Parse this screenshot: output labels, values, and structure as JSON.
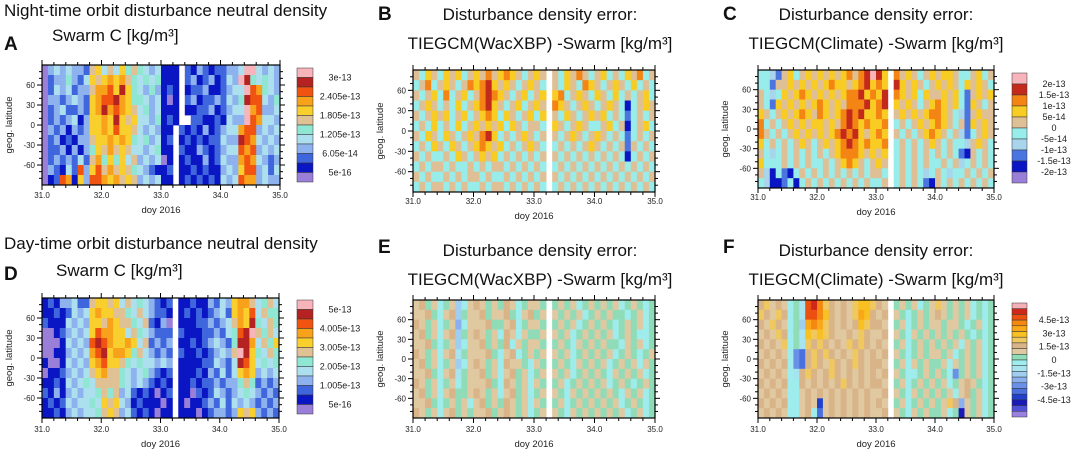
{
  "headers": {
    "night": "Night-time orbit disturbance neutral density",
    "day": "Day-time orbit disturbance neutral density"
  },
  "palettes": {
    "density": [
      "#9a7fd8",
      "#0a16c4",
      "#3f66dc",
      "#8eb2ee",
      "#ace0ee",
      "#8fe6d2",
      "#e0c194",
      "#f8cf2c",
      "#f8a21c",
      "#f05410",
      "#b42222",
      "#f7b4ba"
    ],
    "error10": [
      "#9a7fd8",
      "#0a16c4",
      "#4a74e0",
      "#a8d4ec",
      "#98ecea",
      "#dfc096",
      "#f8cc22",
      "#f48414",
      "#c42a1c",
      "#f7b4ba"
    ],
    "error20": [
      "#9a80e0",
      "#5050d8",
      "#1a1ab8",
      "#2040d0",
      "#4a70e0",
      "#6a90e8",
      "#8ab0ee",
      "#a0cef0",
      "#a8e4f0",
      "#9eecec",
      "#90dcb8",
      "#e0c8a0",
      "#d8b488",
      "#f0c860",
      "#f8c020",
      "#f8a818",
      "#f48810",
      "#ec5010",
      "#d02818",
      "#f4b0b8"
    ]
  },
  "chart_data": [
    {
      "id": "A",
      "type": "heatmap",
      "panel_label": "A",
      "title_lines": [
        "Swarm C [kg/m³]"
      ],
      "xlabel": "doy 2016",
      "ylabel": "geog. latitude",
      "xlim": [
        31.0,
        35.0
      ],
      "ylim": [
        -90,
        90
      ],
      "xticks": [
        "31.0",
        "32.0",
        "33.0",
        "34.0",
        "35.0"
      ],
      "yticks": [
        "60",
        "30",
        "0",
        "-30",
        "-60"
      ],
      "palette": "density",
      "colorbar_labels": [
        "3e-13",
        "2.405e-13",
        "1.805e-13",
        "1.205e-13",
        "6.05e-14",
        "5e-16"
      ],
      "grid_note": "rows: latitude bins 90 to -90 (15 deg); cols: 0.1 day bins; value = color level index (0-9,a-b); '-' = no data",
      "grid": [
        "03434332674647565434111-2132122334bb43433",
        "02335324767878654545111-231231243ba54543",
        "02434233688 97a754353121-1223112344b985434",
        "03323432789 9a8755434101-2312232435a994353",
        "023422327 8a898764534111-1122312344b893349",
        "02323413778 7a7674435121--221121433b984434",
        "0323132377879776434311-2121312344899343 4",
        "0231213367787875453412-1212122433a984343",
        "0223131357686764434511-2113212344989343 4",
        "0232324268575746343401-1211312433898432 3",
        "0321429379686765432112-1121211343799342 4",
        "0129817399878676343411-1212121434988343 3"
      ]
    },
    {
      "id": "B",
      "type": "heatmap",
      "panel_label": "B",
      "title_lines": [
        "Disturbance density error:",
        "TIEGCM(WacXBP) -Swarm [kg/m³]"
      ],
      "xlabel": "doy 2016",
      "ylabel": "geog. latitude",
      "xlim": [
        31.0,
        35.0
      ],
      "ylim": [
        -90,
        90
      ],
      "xticks": [
        "31.0",
        "32.0",
        "33.0",
        "34.0",
        "35.0"
      ],
      "yticks": [
        "60",
        "30",
        "0",
        "-30",
        "-60"
      ],
      "palette": "error10",
      "colorbar_labels": [],
      "grid": [
        "5465465645657567654565-54657545645465745",
        "4574565457678656545654-54654765456546454",
        "5456474564578765456456-67456546546454564",
        "4565454645678654564565-76545654565414565",
        "5456564564567646545646-54654565645424545",
        "4546454645656564654554-65456544564514564",
        "5465465456578645456545-54565456545424545",
        "4546546545676564545654-45454565454525454",
        "5454454654565645454545-54545454545414545",
        "4545545445454554545454-45454545454545454",
        "5454454545545445454545-54545454545454545",
        "4545545454454554545454-45454545454545454"
      ]
    },
    {
      "id": "C",
      "type": "heatmap",
      "panel_label": "C",
      "title_lines": [
        "Disturbance density error:",
        "TIEGCM(Climate) -Swarm [kg/m³]"
      ],
      "xlabel": "doy 2016",
      "ylabel": "geog. latitude",
      "xlim": [
        31.0,
        35.0
      ],
      "ylim": [
        -90,
        90
      ],
      "xticks": [
        "31.0",
        "32.0",
        "33.0",
        "34.0",
        "35.0"
      ],
      "yticks": [
        "60",
        "30",
        "0",
        "-30",
        "-60"
      ],
      "palette": "error10",
      "colorbar_labels": [
        "2e-13",
        "1.5e-13",
        "1e-13",
        "5e-14",
        "0",
        "-5e-14",
        "-1e-13",
        "-1.5e-13",
        "-2e-13"
      ],
      "grid": [
        "4432564565656567578986-75654565665445645",
        "4425565656567665678676-86565456565465654",
        "5434656765656567786768-76564655656425656",
        "5426565656765657778678-65654567656426545",
        "6545656765765678786676-56565677654325655",
        "7454565656656578767667-45456567654526565",
        "7545456565656787865676-54545676545324565",
        "6454545654565678767667-45454565454435654",
        "5434545454545677765656-45454545454215454",
        "6444545454454567654565-45454544545345454",
        "5314214545454545454554-45454345434454545",
        "4311241454545454545445-45454215454545454"
      ]
    },
    {
      "id": "D",
      "type": "heatmap",
      "panel_label": "D",
      "title_lines": [
        "Swarm C  [kg/m³]"
      ],
      "xlabel": "doy 2016",
      "ylabel": "geog. latitude",
      "xlim": [
        31.0,
        35.0
      ],
      "ylim": [
        -90,
        90
      ],
      "xticks": [
        "31.0",
        "32.0",
        "33.0",
        "34.0",
        "35.0"
      ],
      "yticks": [
        "60",
        "30",
        "0",
        "-30",
        "-60"
      ],
      "palette": "density",
      "colorbar_labels": [
        "5e-13",
        "4.005e-13",
        "3.005e-13",
        "2.005e-13",
        "1.005e-13",
        "5e-16"
      ],
      "grid": [
        "121334226776746454321 2-112113243788 64564",
        "112124347877665464322 1-121212342787946 55",
        "211143437768766546213 0-111223234687a5465",
        "001234347988774654322 2-211122324 59ab6564",
        "000143439a98778746232 3-112123432 5aa84657",
        "001134348 9a78875643232-211212343 6ba75465",
        "100143437897765454434 3-111122432 4a974545",
        "011234346786654345321 2-111213242 47873434",
        "112143454666654343212 1-112122323 35652323",
        "213134344565634212101 2-110212432 34543232",
        "121243445476743121110 1-101123242 43432323",
        "112134344567634212101 1-111012332 37673232"
      ]
    },
    {
      "id": "E",
      "type": "heatmap",
      "panel_label": "E",
      "title_lines": [
        "Disturbance density error:",
        "TIEGCM(WacXBP) -Swarm [kg/m³]"
      ],
      "xlabel": "doy 2016",
      "ylabel": "geog. latitude",
      "xlim": [
        31.0,
        35.0
      ],
      "ylim": [
        -90,
        90
      ],
      "xticks": [
        "31.0",
        "32.0",
        "33.0",
        "34.0",
        "35.0"
      ],
      "yticks": [
        "60",
        "30",
        "0",
        "-30",
        "-60"
      ],
      "palette": "error20",
      "colorbar_labels": [],
      "grid": [
        "bcab9ab79bcbabacb9abba-abab9ababab9aba9a",
        "bbca9bc7abbcabbca9bcab-babab9ababaa9ab9a",
        "cbab9ab69bbbcaabc9abba-abab9ababa9abab9a",
        "bcab9bc7abcbab9cb9baab-bab9ababab9aba99a",
        "bbca9ab79bbcabac9babba-aba9babab aa9bab9a",
        "cbab9bc8abbbca9bc9abab-bab9ababab9aba9ab",
        "bcab9ab79bcbab9cbba9ba-aba9babab9abab9ba",
        "bbca9bc8abbcab9bcab9ab-bab9ababa9babab9a",
        "cbab9ab9abbbca9cbab9ba-ab9ababab9aba9aba",
        "bcab9bcaabcbab9bcab9ab-ba9bababab a9bab9a",
        "bbca9abab9bcabacbab9ba-ab9abababab9aba9a",
        "cbab9bcababbcabcbab9ab-ba9bababab ab9ab9a"
      ]
    },
    {
      "id": "F",
      "type": "heatmap",
      "panel_label": "F",
      "title_lines": [
        "Disturbance density error:",
        "TIEGCM(Climate) -Swarm [kg/m³]"
      ],
      "xlabel": "doy 2016",
      "ylabel": "geog. latitude",
      "xlim": [
        31.0,
        35.0
      ],
      "ylim": [
        -90,
        90
      ],
      "xticks": [
        "31.0",
        "32.0",
        "33.0",
        "34.0",
        "35.0"
      ],
      "yticks": [
        "60",
        "30",
        "0",
        "-30",
        "-60"
      ],
      "palette": "error20",
      "colorbar_labels": [
        "4.5e-13",
        "3e-13",
        "1.5e-13",
        "0",
        "-1.5e-13",
        "-3e-13",
        "-4.5e-13"
      ],
      "grid": [
        "cdbcb9a8higdcbcbdeedcb-abab9abdbabab9a9a",
        "dcbdc9a8hhgecbcbdfecbc-ba9ababcbabab9a9a",
        "cbdcb9a7fgfdcbcbcedccb-ab9ababbabba9ab9a",
        "bcbdc9a8ededcbbcbdcbbc-ba9bababababa9a9a",
        "cbcbd9a8dcdcbcbdcdcbcb-ab9ababab ab9bab9a",
        "bcbcb954cdcdcbcbdcbcbc-ba9ababbab9abab9a",
        "cbcbc954cdcbdcbcdcbccb-ab9babaab9babab9a",
        "bcbcb98cdcbcdcbcbcbcbc-ba99ababa95abab9a",
        "cbcbc99cbcbcbcdcbcbccb-ab9ababab9abcba9a",
        "bcbcb99bcbcbcbcbcbcbbc-ba9bababab9bcab9a",
        "cbcbc99bcb3bcbcbcbcbcb-ab9ababab dc6bab9a",
        "bcbcb99bc94bcbcbcbcbbc-ba9babaab9a2bab9a"
      ]
    }
  ]
}
